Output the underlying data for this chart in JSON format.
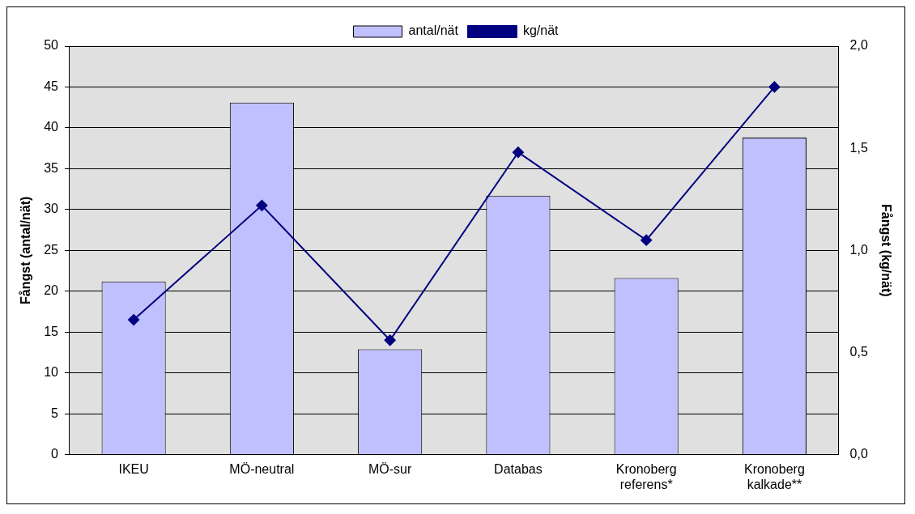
{
  "chart_data": {
    "type": "bar",
    "categories": [
      "IKEU",
      "MÖ-neutral",
      "MÖ-sur",
      "Databas",
      "Kronoberg referens*",
      "Kronoberg kalkade**"
    ],
    "series": [
      {
        "name": "antal/nät",
        "color": "#c0c0ff",
        "values": [
          21.2,
          43.1,
          12.9,
          31.7,
          21.6,
          38.8
        ]
      },
      {
        "name": "kg/nät",
        "type": "line",
        "axis": "y2",
        "color": "#000080",
        "values": [
          0.66,
          1.22,
          0.56,
          1.48,
          1.05,
          1.8
        ]
      }
    ],
    "ylabel": "Fångst (antal/nät)",
    "y2label": "Fångst (kg/nät)",
    "ylim": [
      0,
      50
    ],
    "yticks": [
      0,
      5,
      10,
      15,
      20,
      25,
      30,
      35,
      40,
      45,
      50
    ],
    "y2lim": [
      0,
      2
    ],
    "y2ticks": [
      {
        "value": 0,
        "label": "0,0"
      },
      {
        "value": 0.5,
        "label": "0,5"
      },
      {
        "value": 1,
        "label": "1,0"
      },
      {
        "value": 1.5,
        "label": "1,5"
      },
      {
        "value": 2,
        "label": "2,0"
      }
    ],
    "grid": "y",
    "legend": "top",
    "marker": "diamond",
    "line_style": "solid"
  }
}
